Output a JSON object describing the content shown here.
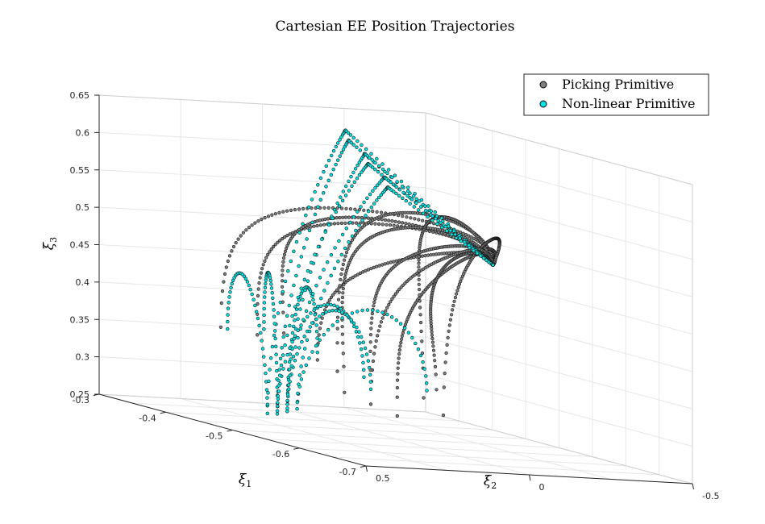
{
  "chart_data": {
    "type": "scatter",
    "title": "Cartesian EE Position Trajectories",
    "xlabel": "ξ1",
    "ylabel": "ξ2",
    "zlabel": "ξ3",
    "x_ticks": [
      "-0.3",
      "-0.4",
      "-0.5",
      "-0.6",
      "-0.7"
    ],
    "y_ticks": [
      "-0.5",
      "0",
      "0.5"
    ],
    "z_ticks": [
      "0.25",
      "0.3",
      "0.35",
      "0.4",
      "0.45",
      "0.5",
      "0.55",
      "0.6",
      "0.65"
    ],
    "xlim": [
      -0.7,
      -0.3
    ],
    "ylim": [
      -0.5,
      0.5
    ],
    "zlim": [
      0.25,
      0.65
    ],
    "grid": true,
    "legend_position": "top-right",
    "series": [
      {
        "name": "Picking Primitive",
        "color": "#808080",
        "approx_start_points": [
          {
            "x": -0.36,
            "y": 0.25,
            "z": 0.36
          },
          {
            "x": -0.4,
            "y": 0.22,
            "z": 0.36
          },
          {
            "x": -0.43,
            "y": 0.2,
            "z": 0.37
          },
          {
            "x": -0.5,
            "y": 0.24,
            "z": 0.35
          },
          {
            "x": -0.52,
            "y": 0.22,
            "z": 0.34
          },
          {
            "x": -0.56,
            "y": 0.28,
            "z": 0.32
          },
          {
            "x": -0.58,
            "y": 0.24,
            "z": 0.31
          },
          {
            "x": -0.6,
            "y": 0.2,
            "z": 0.3
          },
          {
            "x": -0.62,
            "y": 0.16,
            "z": 0.33
          },
          {
            "x": -0.63,
            "y": 0.12,
            "z": 0.31
          },
          {
            "x": -0.55,
            "y": 0.18,
            "z": 0.35
          },
          {
            "x": -0.61,
            "y": 0.1,
            "z": 0.34
          }
        ],
        "approx_end_point": {
          "x": -0.45,
          "y": -0.4,
          "z": 0.48
        },
        "approx_peak_z": 0.58
      },
      {
        "name": "Non-linear Primitive",
        "color": "#00e5e5",
        "approx_start_points": [
          {
            "x": -0.37,
            "y": 0.25,
            "z": 0.36
          },
          {
            "x": -0.41,
            "y": 0.22,
            "z": 0.37
          },
          {
            "x": -0.5,
            "y": 0.24,
            "z": 0.36
          },
          {
            "x": -0.55,
            "y": 0.2,
            "z": 0.34
          },
          {
            "x": -0.58,
            "y": 0.24,
            "z": 0.33
          },
          {
            "x": -0.62,
            "y": 0.15,
            "z": 0.34
          }
        ],
        "approx_dip_z": 0.26,
        "approx_peak_z": 0.64,
        "approx_end_point": {
          "x": -0.45,
          "y": -0.4,
          "z": 0.48
        }
      }
    ]
  }
}
